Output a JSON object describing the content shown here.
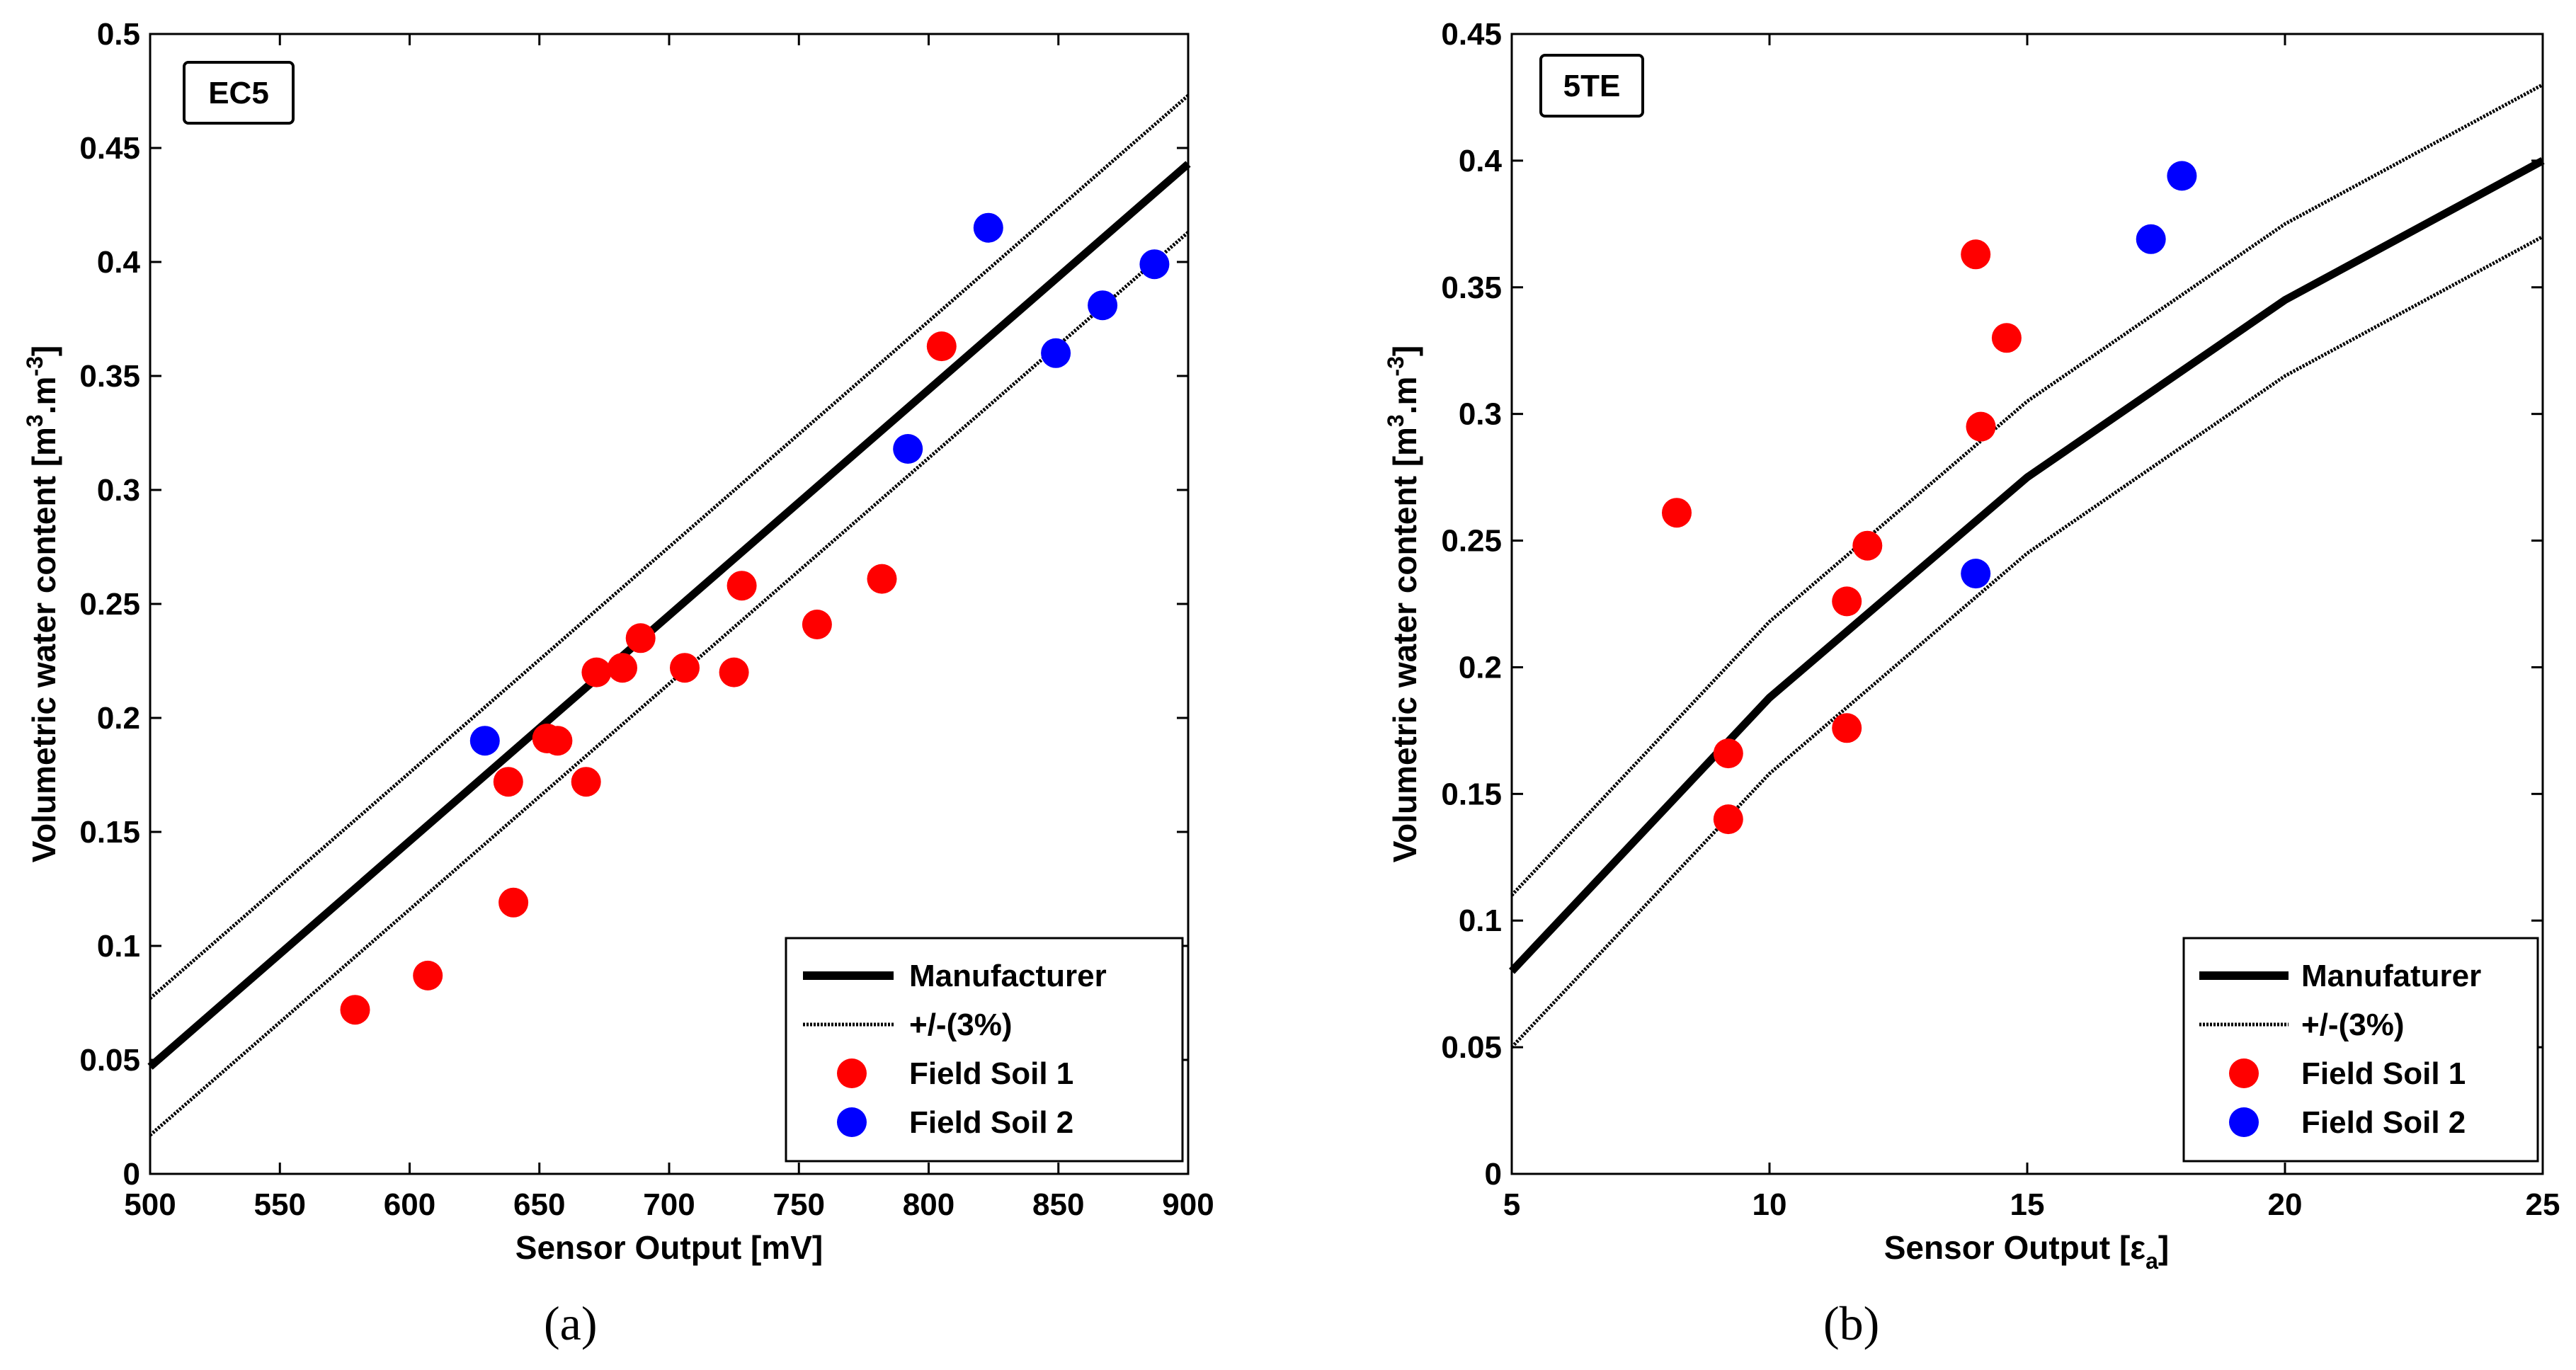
{
  "chart_data": [
    {
      "type": "scatter",
      "panel_label": "(a)",
      "tag": "EC5",
      "xlabel": "Sensor Output [mV]",
      "ylabel_parts": [
        "Volumetric water content [m",
        "3",
        ".m",
        "-3",
        "]"
      ],
      "xlim": [
        500,
        900
      ],
      "ylim": [
        0,
        0.5
      ],
      "xticks": [
        "500",
        "550",
        "600",
        "650",
        "700",
        "750",
        "800",
        "850",
        "900"
      ],
      "yticks": [
        "0",
        "0.05",
        "0.1",
        "0.15",
        "0.2",
        "0.25",
        "0.3",
        "0.35",
        "0.4",
        "0.45",
        "0.5"
      ],
      "legend": [
        "Manufacturer",
        "+/-(3%)",
        "Field Soil 1",
        "Field Soil 2"
      ],
      "legend_position": "bottom-right",
      "manufacturer": {
        "x": [
          500,
          900
        ],
        "y": [
          0.047,
          0.443
        ]
      },
      "band_upper": {
        "x": [
          500,
          900
        ],
        "y": [
          0.077,
          0.473
        ]
      },
      "band_lower": {
        "x": [
          500,
          900
        ],
        "y": [
          0.017,
          0.413
        ]
      },
      "series": [
        {
          "name": "Field Soil 1",
          "color": "#ff0000",
          "x": [
            579,
            607,
            638,
            640,
            653,
            657,
            668,
            672,
            682,
            689,
            706,
            725,
            728,
            757,
            782,
            805
          ],
          "y": [
            0.072,
            0.087,
            0.172,
            0.119,
            0.191,
            0.19,
            0.172,
            0.22,
            0.222,
            0.235,
            0.222,
            0.22,
            0.258,
            0.241,
            0.261,
            0.363
          ]
        },
        {
          "name": "Field Soil 2",
          "color": "#0000ff",
          "x": [
            629,
            792,
            823,
            849,
            867,
            887
          ],
          "y": [
            0.19,
            0.318,
            0.415,
            0.36,
            0.381,
            0.399
          ]
        }
      ]
    },
    {
      "type": "scatter",
      "panel_label": "(b)",
      "tag": "5TE",
      "xlabel_parts": [
        "Sensor Output [ε",
        "a",
        "]"
      ],
      "ylabel_parts": [
        "Volumetric water content [m",
        "3",
        ".m",
        "-3",
        "]"
      ],
      "xlim": [
        5,
        25
      ],
      "ylim": [
        0,
        0.45
      ],
      "xticks": [
        "5",
        "10",
        "15",
        "20",
        "25"
      ],
      "yticks": [
        "0",
        "0.05",
        "0.1",
        "0.15",
        "0.2",
        "0.25",
        "0.3",
        "0.35",
        "0.4",
        "0.45"
      ],
      "legend": [
        "Manufaturer",
        "+/-(3%)",
        "Field Soil 1",
        "Field Soil 2"
      ],
      "legend_position": "bottom-right",
      "manufacturer": {
        "x": [
          5,
          10,
          15,
          20,
          25
        ],
        "y": [
          0.08,
          0.188,
          0.275,
          0.345,
          0.4
        ]
      },
      "band_upper": {
        "x": [
          5,
          10,
          15,
          20,
          25
        ],
        "y": [
          0.11,
          0.218,
          0.305,
          0.375,
          0.43
        ]
      },
      "band_lower": {
        "x": [
          5,
          10,
          15,
          20,
          25
        ],
        "y": [
          0.05,
          0.158,
          0.245,
          0.315,
          0.37
        ]
      },
      "series": [
        {
          "name": "Field Soil 1",
          "color": "#ff0000",
          "x": [
            8.2,
            9.2,
            9.2,
            11.5,
            11.5,
            11.9,
            14.0,
            14.1,
            14.6
          ],
          "y": [
            0.261,
            0.166,
            0.14,
            0.226,
            0.176,
            0.248,
            0.363,
            0.295,
            0.33
          ]
        },
        {
          "name": "Field Soil 2",
          "color": "#0000ff",
          "x": [
            14.0,
            17.4,
            18.0
          ],
          "y": [
            0.237,
            0.369,
            0.394
          ]
        }
      ]
    }
  ]
}
